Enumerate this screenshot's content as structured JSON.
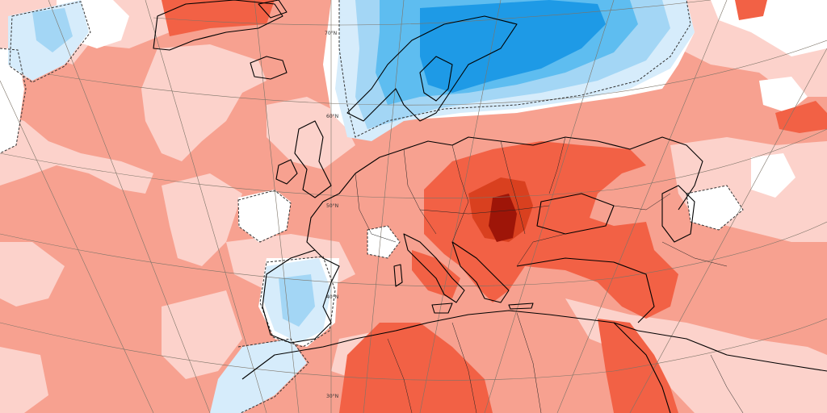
{
  "map": {
    "latitude_labels": [
      "70°N",
      "60°N",
      "50°N",
      "40°N",
      "30°N"
    ],
    "palette": {
      "warm_1": "#fcd2cb",
      "warm_2": "#f7a190",
      "warm_3": "#f26145",
      "warm_4": "#d9401f",
      "warm_5": "#9e1508",
      "neutral": "#ffffff",
      "cool_1": "#d6ecfb",
      "cool_2": "#a3d6f5",
      "cool_3": "#5ebdf0",
      "cool_4": "#1e9ae6"
    }
  }
}
